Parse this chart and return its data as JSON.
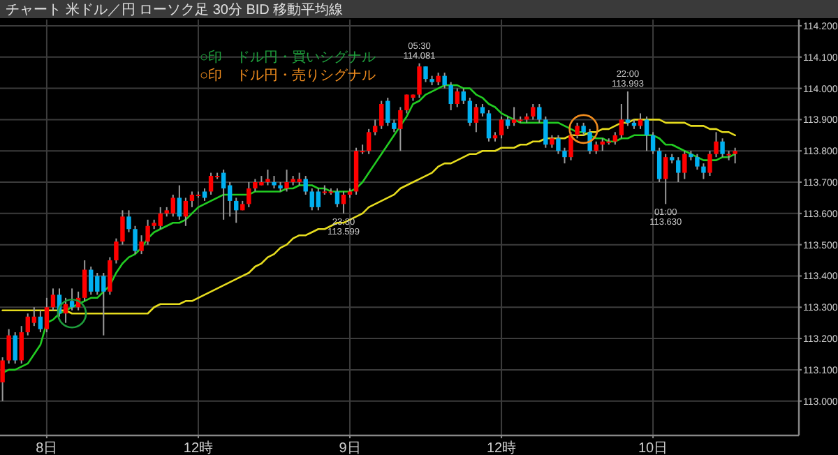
{
  "chart_data": {
    "type": "candlestick",
    "title": "チャート 米ドル／円 ローソク足 30分 BID 移動平均線",
    "categories": [
      null,
      null,
      null,
      null,
      null,
      null,
      null,
      "8日",
      null,
      null,
      null,
      null,
      null,
      null,
      null,
      null,
      null,
      null,
      null,
      null,
      null,
      null,
      null,
      null,
      null,
      null,
      null,
      null,
      null,
      null,
      null,
      "12時",
      null,
      null,
      null,
      null,
      null,
      null,
      null,
      null,
      null,
      null,
      null,
      null,
      null,
      null,
      null,
      null,
      null,
      null,
      null,
      null,
      null,
      null,
      null,
      "9日",
      null,
      null,
      null,
      null,
      null,
      null,
      null,
      null,
      null,
      null,
      null,
      null,
      null,
      null,
      null,
      null,
      null,
      null,
      null,
      null,
      null,
      null,
      null,
      "12時",
      null,
      null,
      null,
      null,
      null,
      null,
      null,
      null,
      null,
      null,
      null,
      null,
      null,
      null,
      null,
      null,
      null,
      null,
      null,
      null,
      null,
      null,
      null,
      "10日",
      null,
      null,
      null,
      null,
      null,
      null,
      null,
      null,
      null,
      null,
      null,
      null,
      null
    ],
    "ylim": [
      112.89,
      114.22
    ],
    "yticks": [
      {
        "value": 113.0,
        "label": "113.000"
      },
      {
        "value": 113.1,
        "label": "113.100"
      },
      {
        "value": 113.2,
        "label": "113.200"
      },
      {
        "value": 113.3,
        "label": "113.300"
      },
      {
        "value": 113.4,
        "label": "113.400"
      },
      {
        "value": 113.5,
        "label": "113.500"
      },
      {
        "value": 113.6,
        "label": "113.600"
      },
      {
        "value": 113.7,
        "label": "113.700"
      },
      {
        "value": 113.8,
        "label": "113.800"
      },
      {
        "value": 113.9,
        "label": "113.900"
      },
      {
        "value": 114.0,
        "label": "114.000"
      },
      {
        "value": 114.1,
        "label": "114.100"
      },
      {
        "value": 114.2,
        "label": "114.200"
      }
    ],
    "grid": true,
    "legend": "top left",
    "colors": [
      "#ff0000",
      "#ff0000",
      "#00b0f0",
      "#ff0000",
      "#ff0000",
      "#ff0000",
      "#00b0f0",
      "#ff0000",
      "#ff0000",
      "#00b0f0",
      "#ff0000",
      "#00b0f0",
      "#ff0000",
      "#ff0000",
      "#00b0f0",
      "#00b0f0",
      "#00b0f0",
      "#ff0000",
      "#ff0000",
      "#ff0000",
      "#00b0f0",
      "#00b0f0",
      "#ff0000",
      "#ff0000",
      "#ff0000",
      "#ff0000",
      "#ff0000",
      "#ff0000",
      "#00b0f0",
      "#ff0000",
      "#ff0000",
      "#ff0000",
      "#00b0f0",
      "#ff0000",
      "#ff0000",
      "#00b0f0",
      "#00b0f0",
      "#00b0f0",
      "#ff0000",
      "#ff0000",
      "#ff0000",
      "#ff0000",
      "#ff0000",
      "#00b0f0",
      "#00b0f0",
      "#ff0000",
      "#ff0000",
      "#ff0000",
      "#00b0f0",
      "#00b0f0",
      "#00b0f0",
      "#ff0000",
      "#ff0000",
      "#00b0f0",
      "#ff0000",
      "#ff0000",
      "#ff0000",
      "#ff0000",
      "#ff0000",
      "#ff0000",
      "#ff0000",
      "#00b0f0",
      "#00b0f0",
      "#ff0000",
      "#ff0000",
      "#ff0000",
      "#ff0000",
      "#00b0f0",
      "#00b0f0",
      "#ff0000",
      "#00b0f0",
      "#00b0f0",
      "#ff0000",
      "#00b0f0",
      "#00b0f0",
      "#ff0000",
      "#00b0f0",
      "#00b0f0",
      "#ff0000",
      "#ff0000",
      "#00b0f0",
      "#ff0000",
      "#ff0000",
      "#ff0000",
      "#ff0000",
      "#00b0f0",
      "#00b0f0",
      "#ff0000",
      "#00b0f0",
      "#00b0f0",
      "#ff0000",
      "#ff0000",
      "#00b0f0",
      "#00b0f0",
      "#ff0000",
      "#ff0000",
      "#ff0000",
      "#ff0000",
      "#ff0000",
      "#00b0f0",
      "#00b0f0",
      "#ff0000",
      "#00b0f0",
      "#00b0f0",
      "#00b0f0",
      "#ff0000",
      "#00b0f0",
      "#00b0f0",
      "#ff0000",
      "#00b0f0",
      "#00b0f0",
      "#00b0f0",
      "#ff0000",
      "#ff0000",
      "#00b0f0",
      "#ff0000",
      "#ff0000"
    ],
    "ohlc": [
      [
        113.06,
        113.14,
        113.0,
        113.13
      ],
      [
        113.13,
        113.23,
        113.12,
        113.21
      ],
      [
        113.21,
        113.22,
        113.12,
        113.13
      ],
      [
        113.13,
        113.24,
        113.12,
        113.22
      ],
      [
        113.22,
        113.28,
        113.21,
        113.27
      ],
      [
        113.25,
        113.3,
        113.24,
        113.27
      ],
      [
        113.27,
        113.29,
        113.22,
        113.23
      ],
      [
        113.23,
        113.33,
        113.22,
        113.3
      ],
      [
        113.3,
        113.36,
        113.29,
        113.34
      ],
      [
        113.34,
        113.36,
        113.27,
        113.28
      ],
      [
        113.28,
        113.33,
        113.25,
        113.31
      ],
      [
        113.32,
        113.36,
        113.29,
        113.3
      ],
      [
        113.3,
        113.35,
        113.29,
        113.33
      ],
      [
        113.33,
        113.45,
        113.32,
        113.42
      ],
      [
        113.42,
        113.43,
        113.34,
        113.35
      ],
      [
        113.4,
        113.41,
        113.34,
        113.35
      ],
      [
        113.4,
        113.41,
        113.21,
        113.35
      ],
      [
        113.35,
        113.46,
        113.34,
        113.45
      ],
      [
        113.45,
        113.52,
        113.44,
        113.51
      ],
      [
        113.51,
        113.61,
        113.5,
        113.59
      ],
      [
        113.59,
        113.61,
        113.54,
        113.55
      ],
      [
        113.55,
        113.56,
        113.47,
        113.48
      ],
      [
        113.48,
        113.53,
        113.47,
        113.51
      ],
      [
        113.51,
        113.58,
        113.5,
        113.56
      ],
      [
        113.56,
        113.58,
        113.55,
        113.57
      ],
      [
        113.56,
        113.62,
        113.55,
        113.6
      ],
      [
        113.6,
        113.62,
        113.59,
        113.61
      ],
      [
        113.6,
        113.66,
        113.59,
        113.65
      ],
      [
        113.65,
        113.69,
        113.58,
        113.59
      ],
      [
        113.59,
        113.65,
        113.56,
        113.64
      ],
      [
        113.64,
        113.67,
        113.62,
        113.66
      ],
      [
        113.66,
        113.67,
        113.65,
        113.66
      ],
      [
        113.67,
        113.68,
        113.64,
        113.65
      ],
      [
        113.67,
        113.73,
        113.66,
        113.72
      ],
      [
        113.72,
        113.73,
        113.71,
        113.72
      ],
      [
        113.73,
        113.74,
        113.58,
        113.68
      ],
      [
        113.69,
        113.7,
        113.59,
        113.64
      ],
      [
        113.64,
        113.65,
        113.57,
        113.61
      ],
      [
        113.61,
        113.64,
        113.61,
        113.63
      ],
      [
        113.63,
        113.7,
        113.62,
        113.68
      ],
      [
        113.68,
        113.71,
        113.67,
        113.7
      ],
      [
        113.69,
        113.72,
        113.69,
        113.7
      ],
      [
        113.7,
        113.74,
        113.69,
        113.71
      ],
      [
        113.7,
        113.72,
        113.68,
        113.69
      ],
      [
        113.69,
        113.7,
        113.67,
        113.68
      ],
      [
        113.68,
        113.74,
        113.67,
        113.7
      ],
      [
        113.7,
        113.72,
        113.69,
        113.71
      ],
      [
        113.7,
        113.73,
        113.69,
        113.71
      ],
      [
        113.71,
        113.72,
        113.66,
        113.67
      ],
      [
        113.67,
        113.68,
        113.61,
        113.62
      ],
      [
        113.67,
        113.68,
        113.61,
        113.62
      ],
      [
        113.67,
        113.69,
        113.66,
        113.67
      ],
      [
        113.67,
        113.68,
        113.66,
        113.67
      ],
      [
        113.67,
        113.68,
        113.62,
        113.63
      ],
      [
        113.63,
        113.67,
        113.6,
        113.66
      ],
      [
        113.66,
        113.68,
        113.65,
        113.67
      ],
      [
        113.67,
        113.81,
        113.66,
        113.8
      ],
      [
        113.8,
        113.82,
        113.79,
        113.8
      ],
      [
        113.8,
        113.87,
        113.79,
        113.86
      ],
      [
        113.86,
        113.9,
        113.85,
        113.88
      ],
      [
        113.88,
        113.96,
        113.87,
        113.95
      ],
      [
        113.96,
        113.97,
        113.88,
        113.89
      ],
      [
        113.89,
        113.9,
        113.86,
        113.87
      ],
      [
        113.87,
        113.94,
        113.8,
        113.93
      ],
      [
        113.93,
        113.98,
        113.92,
        113.98
      ],
      [
        113.97,
        113.98,
        113.96,
        113.98
      ],
      [
        113.98,
        114.08,
        113.97,
        114.07
      ],
      [
        114.07,
        114.07,
        114.02,
        114.03
      ],
      [
        114.03,
        114.04,
        114.01,
        114.02
      ],
      [
        114.02,
        114.05,
        114.01,
        114.04
      ],
      [
        114.04,
        114.05,
        114.0,
        114.01
      ],
      [
        114.01,
        114.02,
        113.93,
        113.95
      ],
      [
        113.95,
        114.0,
        113.94,
        113.99
      ],
      [
        113.99,
        114.0,
        113.95,
        113.96
      ],
      [
        113.96,
        113.97,
        113.88,
        113.89
      ],
      [
        113.89,
        113.95,
        113.86,
        113.94
      ],
      [
        113.94,
        113.95,
        113.91,
        113.92
      ],
      [
        113.92,
        113.93,
        113.83,
        113.84
      ],
      [
        113.84,
        113.86,
        113.83,
        113.85
      ],
      [
        113.85,
        113.91,
        113.84,
        113.9
      ],
      [
        113.9,
        113.91,
        113.87,
        113.88
      ],
      [
        113.89,
        113.94,
        113.88,
        113.9
      ],
      [
        113.9,
        113.91,
        113.89,
        113.9
      ],
      [
        113.9,
        113.92,
        113.89,
        113.91
      ],
      [
        113.91,
        113.95,
        113.9,
        113.94
      ],
      [
        113.94,
        113.95,
        113.89,
        113.9
      ],
      [
        113.9,
        113.91,
        113.81,
        113.82
      ],
      [
        113.82,
        113.85,
        113.81,
        113.84
      ],
      [
        113.84,
        113.85,
        113.79,
        113.8
      ],
      [
        113.8,
        113.81,
        113.76,
        113.78
      ],
      [
        113.78,
        113.86,
        113.77,
        113.85
      ],
      [
        113.85,
        113.89,
        113.84,
        113.88
      ],
      [
        113.88,
        113.89,
        113.85,
        113.86
      ],
      [
        113.86,
        113.87,
        113.79,
        113.8
      ],
      [
        113.8,
        113.83,
        113.79,
        113.82
      ],
      [
        113.82,
        113.84,
        113.8,
        113.83
      ],
      [
        113.83,
        113.84,
        113.82,
        113.83
      ],
      [
        113.83,
        113.86,
        113.82,
        113.85
      ],
      [
        113.85,
        113.95,
        113.84,
        113.9
      ],
      [
        113.9,
        113.99,
        113.88,
        113.89
      ],
      [
        113.89,
        113.9,
        113.87,
        113.88
      ],
      [
        113.88,
        113.92,
        113.87,
        113.9
      ],
      [
        113.9,
        113.91,
        113.8,
        113.85
      ],
      [
        113.85,
        113.86,
        113.79,
        113.8
      ],
      [
        113.8,
        113.81,
        113.7,
        113.71
      ],
      [
        113.71,
        113.79,
        113.63,
        113.78
      ],
      [
        113.78,
        113.79,
        113.76,
        113.77
      ],
      [
        113.77,
        113.78,
        113.7,
        113.73
      ],
      [
        113.73,
        113.8,
        113.71,
        113.79
      ],
      [
        113.79,
        113.8,
        113.77,
        113.78
      ],
      [
        113.78,
        113.79,
        113.74,
        113.75
      ],
      [
        113.75,
        113.76,
        113.71,
        113.73
      ],
      [
        113.73,
        113.8,
        113.72,
        113.79
      ],
      [
        113.79,
        113.86,
        113.78,
        113.83
      ],
      [
        113.83,
        113.84,
        113.78,
        113.79
      ],
      [
        113.79,
        113.8,
        113.77,
        113.79
      ],
      [
        113.79,
        113.81,
        113.76,
        113.8
      ]
    ],
    "series": [
      {
        "type": "line",
        "color": "#22cc22",
        "values": [
          113.09,
          113.1,
          113.1,
          113.11,
          113.12,
          113.15,
          113.18,
          113.25,
          113.26,
          113.28,
          113.29,
          113.3,
          113.31,
          113.32,
          113.33,
          113.33,
          113.35,
          113.37,
          113.41,
          113.44,
          113.46,
          113.47,
          113.49,
          113.52,
          113.54,
          113.55,
          113.56,
          113.57,
          113.57,
          113.58,
          113.6,
          113.62,
          113.63,
          113.64,
          113.65,
          113.66,
          113.66,
          113.66,
          113.66,
          113.66,
          113.67,
          113.67,
          113.67,
          113.67,
          113.67,
          113.68,
          113.68,
          113.69,
          113.69,
          113.69,
          113.68,
          113.68,
          113.67,
          113.67,
          113.67,
          113.67,
          113.68,
          113.7,
          113.73,
          113.76,
          113.79,
          113.82,
          113.85,
          113.88,
          113.91,
          113.95,
          113.96,
          113.98,
          113.99,
          114.0,
          114.01,
          114.01,
          114.01,
          114.0,
          114.0,
          113.98,
          113.97,
          113.95,
          113.94,
          113.92,
          113.91,
          113.9,
          113.89,
          113.89,
          113.89,
          113.89,
          113.89,
          113.89,
          113.89,
          113.88,
          113.87,
          113.86,
          113.86,
          113.85,
          113.84,
          113.84,
          113.83,
          113.83,
          113.84,
          113.84,
          113.85,
          113.85,
          113.85,
          113.85,
          113.84,
          113.82,
          113.82,
          113.81,
          113.8,
          113.79,
          113.78,
          113.77,
          113.77,
          113.77,
          113.78,
          113.78,
          113.79
        ]
      },
      {
        "type": "line",
        "color": "#e6dc1e",
        "values": [
          113.29,
          113.29,
          113.29,
          113.29,
          113.29,
          113.29,
          113.29,
          113.29,
          113.29,
          113.29,
          113.29,
          113.28,
          113.28,
          113.28,
          113.28,
          113.28,
          113.28,
          113.28,
          113.28,
          113.28,
          113.28,
          113.28,
          113.28,
          113.28,
          113.3,
          113.31,
          113.31,
          113.31,
          113.31,
          113.32,
          113.32,
          113.33,
          113.34,
          113.35,
          113.36,
          113.37,
          113.38,
          113.39,
          113.4,
          113.41,
          113.43,
          113.44,
          113.46,
          113.47,
          113.49,
          113.5,
          113.52,
          113.53,
          113.53,
          113.54,
          113.55,
          113.55,
          113.56,
          113.57,
          113.57,
          113.58,
          113.59,
          113.6,
          113.62,
          113.63,
          113.64,
          113.65,
          113.66,
          113.68,
          113.69,
          113.7,
          113.71,
          113.72,
          113.73,
          113.75,
          113.76,
          113.76,
          113.77,
          113.78,
          113.79,
          113.79,
          113.8,
          113.8,
          113.8,
          113.81,
          113.81,
          113.81,
          113.82,
          113.82,
          113.83,
          113.83,
          113.84,
          113.84,
          113.84,
          113.84,
          113.85,
          113.85,
          113.85,
          113.86,
          113.86,
          113.87,
          113.87,
          113.88,
          113.89,
          113.89,
          113.9,
          113.9,
          113.9,
          113.9,
          113.9,
          113.89,
          113.89,
          113.89,
          113.89,
          113.88,
          113.88,
          113.88,
          113.87,
          113.87,
          113.86,
          113.86,
          113.85
        ]
      },
      {
        "type": "scatter",
        "name": "○印　ドル円・買いシグナル",
        "color": "#1e9e3c",
        "marker": "circle",
        "values": [
          null,
          null,
          null,
          null,
          null,
          null,
          null,
          null,
          null,
          null,
          null,
          113.28,
          null,
          null,
          null,
          null,
          null,
          null,
          null,
          null,
          null,
          null,
          null,
          null,
          null,
          null,
          null,
          null,
          null,
          null,
          null,
          null,
          null,
          null,
          null,
          null,
          null,
          null,
          null,
          null,
          null,
          null,
          null,
          null,
          null,
          null,
          null,
          null,
          null,
          null,
          null,
          null,
          null,
          null,
          null,
          null,
          null,
          null,
          null,
          null,
          null,
          null,
          null,
          null,
          null,
          null,
          null,
          null,
          null,
          null,
          null,
          null,
          null,
          null,
          null,
          null,
          null,
          null,
          null,
          null,
          null,
          null,
          null,
          null,
          null,
          null,
          null,
          null,
          null,
          null,
          null,
          null,
          null,
          null,
          null,
          null,
          null,
          null,
          null,
          null,
          null,
          null,
          null,
          null,
          null,
          null,
          null,
          null,
          null,
          null,
          null,
          null,
          null,
          null,
          null,
          null,
          null
        ]
      },
      {
        "type": "scatter",
        "name": "○印　ドル円・売りシグナル",
        "color": "#f08c1e",
        "marker": "circle",
        "values": [
          null,
          null,
          null,
          null,
          null,
          null,
          null,
          null,
          null,
          null,
          null,
          null,
          null,
          null,
          null,
          null,
          null,
          null,
          null,
          null,
          null,
          null,
          null,
          null,
          null,
          null,
          null,
          null,
          null,
          null,
          null,
          null,
          null,
          null,
          null,
          null,
          null,
          null,
          null,
          null,
          null,
          null,
          null,
          null,
          null,
          null,
          null,
          null,
          null,
          null,
          null,
          null,
          null,
          null,
          null,
          null,
          null,
          null,
          null,
          null,
          null,
          null,
          null,
          null,
          null,
          null,
          null,
          null,
          null,
          null,
          null,
          null,
          null,
          null,
          null,
          null,
          null,
          null,
          null,
          null,
          null,
          null,
          null,
          null,
          null,
          null,
          null,
          null,
          null,
          null,
          null,
          null,
          113.87,
          null,
          null,
          null,
          null,
          null,
          null,
          null,
          null,
          null,
          null,
          null,
          null,
          null,
          null,
          null,
          null,
          null,
          null,
          null,
          null,
          null,
          null,
          null,
          null
        ]
      }
    ],
    "annotations": [
      {
        "text": "05:30\n114.081",
        "y": 114.081
      },
      {
        "text": "23:30\n113.599",
        "y": 113.599
      },
      {
        "text": "22:00\n113.993",
        "y": 113.993
      },
      {
        "text": "01:00\n113.630",
        "y": 113.63
      }
    ]
  }
}
